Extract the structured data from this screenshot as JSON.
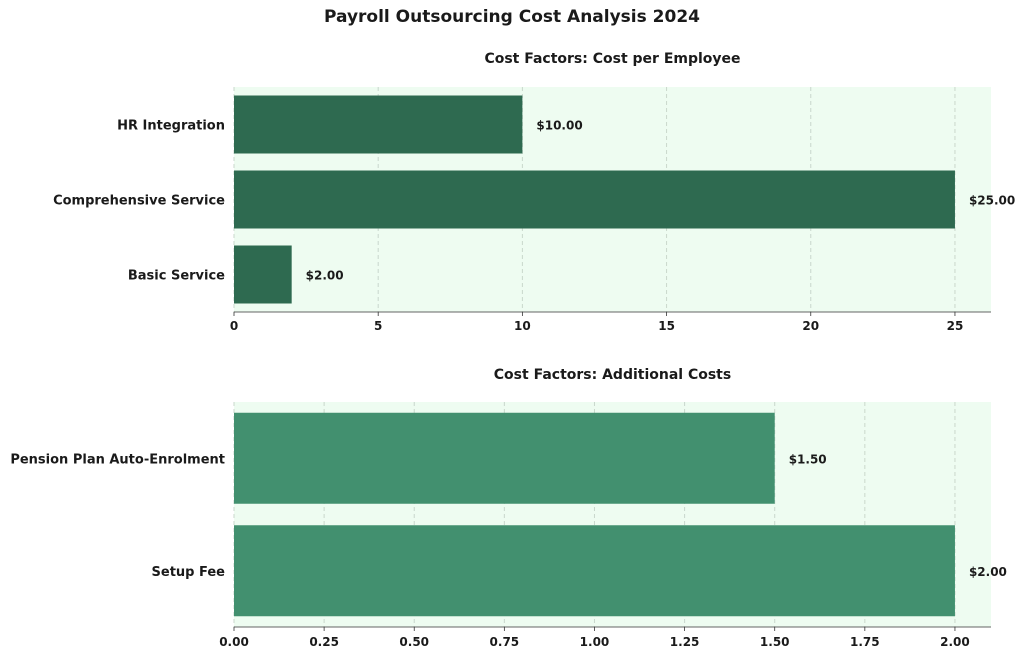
{
  "title": "Payroll Outsourcing Cost Analysis 2024",
  "colors": {
    "panel_bg": "#eefcf1",
    "grid": "#c9d7cc",
    "bar_dark": "#2e6a50",
    "bar_light": "#42906f",
    "text": "#1a1a1a"
  },
  "chart_data": [
    {
      "type": "bar",
      "orientation": "horizontal",
      "title": "Cost Factors: Cost per Employee",
      "categories": [
        "Basic Service",
        "Comprehensive Service",
        "HR Integration"
      ],
      "values": [
        2.0,
        25.0,
        10.0
      ],
      "data_labels": [
        "$2.00",
        "$25.00",
        "$10.00"
      ],
      "xlim": [
        0,
        26.25
      ],
      "xticks": [
        0,
        5,
        10,
        15,
        20,
        25
      ],
      "xtick_labels": [
        "0",
        "5",
        "10",
        "15",
        "20",
        "25"
      ],
      "grid": "vertical dashed"
    },
    {
      "type": "bar",
      "orientation": "horizontal",
      "title": "Cost Factors: Additional Costs",
      "categories": [
        "Setup Fee",
        "Pension Plan Auto-Enrolment"
      ],
      "values": [
        2.0,
        1.5
      ],
      "data_labels": [
        "$2.00",
        "$1.50"
      ],
      "xlim": [
        0,
        2.1
      ],
      "xticks": [
        0,
        0.25,
        0.5,
        0.75,
        1.0,
        1.25,
        1.5,
        1.75,
        2.0
      ],
      "xtick_labels": [
        "0.00",
        "0.25",
        "0.50",
        "0.75",
        "1.00",
        "1.25",
        "1.50",
        "1.75",
        "2.00"
      ],
      "grid": "vertical dashed"
    }
  ]
}
